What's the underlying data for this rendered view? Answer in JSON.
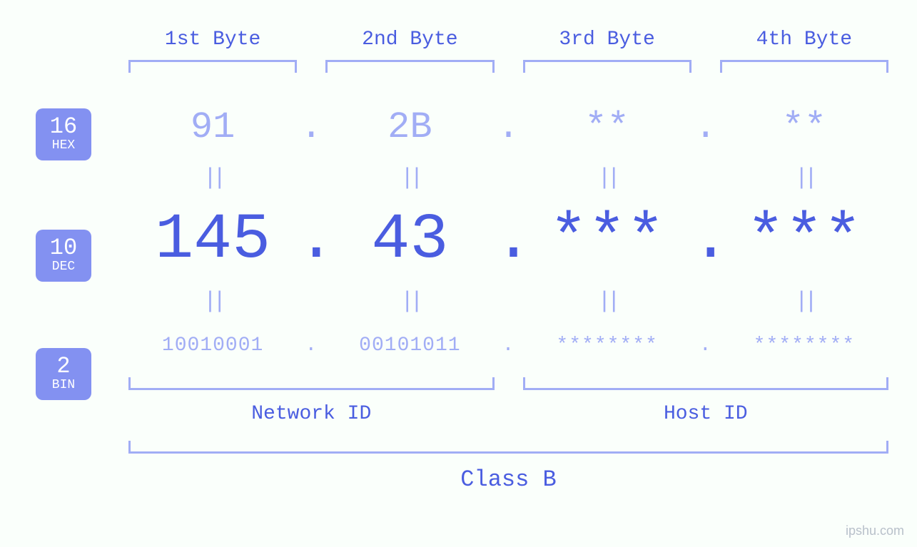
{
  "colors": {
    "background": "#fafffb",
    "badge_fill": "#8391f1",
    "light_text": "#a1adf5",
    "dark_text": "#4a5de0",
    "white": "#ffffff"
  },
  "font_family": "monospace",
  "byte_headers": [
    "1st Byte",
    "2nd Byte",
    "3rd Byte",
    "4th Byte"
  ],
  "rows": {
    "hex": {
      "base_num": "16",
      "base_name": "HEX",
      "values": [
        "91",
        "2B",
        "**",
        "**"
      ],
      "font_size": 52,
      "color": "#a1adf5"
    },
    "dec": {
      "base_num": "10",
      "base_name": "DEC",
      "values": [
        "145",
        "43",
        "***",
        "***"
      ],
      "font_size": 90,
      "color": "#4a5de0"
    },
    "bin": {
      "base_num": "2",
      "base_name": "BIN",
      "values": [
        "10010001",
        "00101011",
        "********",
        "********"
      ],
      "font_size": 28,
      "color": "#a1adf5"
    }
  },
  "separators": {
    "dot": ".",
    "eq": "||"
  },
  "bottom": {
    "network_label": "Network ID",
    "host_label": "Host ID",
    "class_label": "Class B"
  },
  "watermark": "ipshu.com",
  "brackets": {
    "color": "#a1adf5",
    "stroke_width": 3
  }
}
